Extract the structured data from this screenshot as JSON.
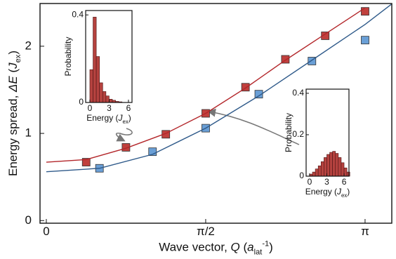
{
  "chart_data": [
    {
      "type": "scatter",
      "xlabel": [
        {
          "text": "Wave vector, "
        },
        {
          "text": "Q",
          "style": "italic"
        },
        {
          "text": " ("
        },
        {
          "text": "a",
          "style": "italic"
        },
        {
          "text": "lat",
          "style": "sub"
        },
        {
          "text": "-1",
          "style": "sup"
        },
        {
          "text": ")"
        }
      ],
      "ylabel": [
        {
          "text": "Energy spread, "
        },
        {
          "text": "ΔE",
          "style": "italic"
        },
        {
          "text": " ("
        },
        {
          "text": "J",
          "style": "italic"
        },
        {
          "text": "ex",
          "style": "sub"
        },
        {
          "text": ")"
        }
      ],
      "xlim": [
        -0.062,
        3.405
      ],
      "ylim": [
        -0.03,
        2.49
      ],
      "xticks": [
        0,
        {
          "value": 1.5708,
          "label": "π/2"
        },
        {
          "value": 3.1416,
          "label": "π"
        }
      ],
      "yticks": [
        0,
        1,
        2
      ],
      "series": [
        {
          "kind": "markers",
          "color": "#c0403d",
          "x": [
            0.393,
            0.785,
            1.178,
            1.571,
            1.963,
            2.356,
            2.749,
            3.142
          ],
          "values": [
            0.67,
            0.84,
            0.99,
            1.23,
            1.53,
            1.85,
            2.12,
            2.4
          ]
        },
        {
          "kind": "markers",
          "color": "#6a9fd6",
          "x": [
            0.524,
            1.047,
            1.571,
            2.094,
            2.618,
            3.142
          ],
          "values": [
            0.6,
            0.79,
            1.06,
            1.45,
            1.83,
            2.07
          ]
        },
        {
          "kind": "line",
          "color": "#b3262a",
          "x": [
            0,
            0.393,
            0.785,
            1.178,
            1.571,
            1.963,
            2.356,
            2.749,
            3.142
          ],
          "values": [
            0.67,
            0.7,
            0.83,
            1.0,
            1.23,
            1.52,
            1.84,
            2.14,
            2.44
          ]
        },
        {
          "kind": "line",
          "color": "#2f5a8a",
          "x": [
            0,
            0.524,
            1.047,
            1.571,
            2.094,
            2.618,
            3.142,
            3.4
          ],
          "values": [
            0.56,
            0.6,
            0.76,
            1.06,
            1.43,
            1.84,
            2.25,
            2.48
          ]
        }
      ]
    },
    {
      "type": "histogram",
      "color": "#b5423f",
      "xlabel": [
        {
          "text": "Energy ("
        },
        {
          "text": "J",
          "style": "italic"
        },
        {
          "text": "ex",
          "style": "sub"
        },
        {
          "text": ")"
        }
      ],
      "ylabel": [
        {
          "text": "Probability"
        }
      ],
      "xlim": [
        -0.65,
        6.55
      ],
      "ylim": [
        0,
        0.42
      ],
      "xticks": [
        0,
        3,
        6
      ],
      "yticks": [
        0,
        0.4
      ],
      "bins": [
        0,
        0.5,
        1,
        1.5,
        2,
        2.5,
        3,
        3.5,
        4,
        4.5,
        5
      ],
      "values": [
        0.15,
        0.39,
        0.21,
        0.09,
        0.05,
        0.03,
        0.015,
        0.01,
        0.005,
        0.003
      ]
    },
    {
      "type": "histogram",
      "color": "#b5423f",
      "xlabel": [
        {
          "text": "Energy ("
        },
        {
          "text": "J",
          "style": "italic"
        },
        {
          "text": "ex",
          "style": "sub"
        },
        {
          "text": ")"
        }
      ],
      "ylabel": [
        {
          "text": "Probability"
        }
      ],
      "xlim": [
        -0.6,
        6.85
      ],
      "ylim": [
        0,
        0.42
      ],
      "xticks": [
        0,
        3,
        6
      ],
      "yticks": [
        0,
        0.2,
        0.4
      ],
      "bins": [
        0,
        0.5,
        1,
        1.5,
        2,
        2.5,
        3,
        3.5,
        4,
        4.5,
        5,
        5.5,
        6,
        6.5,
        7
      ],
      "values": [
        0.01,
        0.02,
        0.035,
        0.05,
        0.07,
        0.09,
        0.105,
        0.115,
        0.12,
        0.11,
        0.09,
        0.065,
        0.04,
        0.02
      ]
    }
  ]
}
